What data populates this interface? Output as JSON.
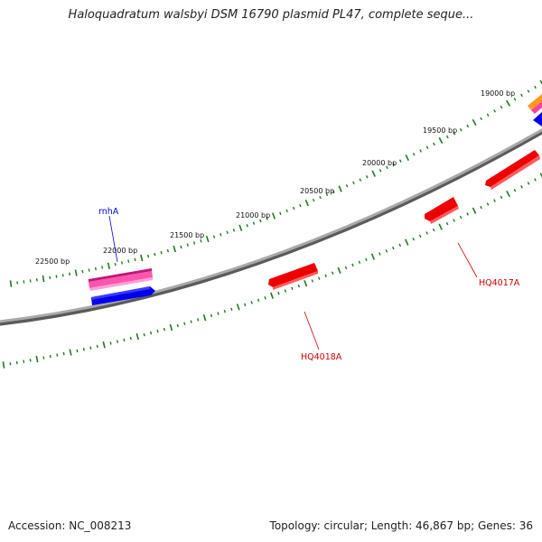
{
  "title": "Haloquadratum walsbyi DSM 16790 plasmid PL47, complete seque...",
  "footer": {
    "accession": "Accession: NC_008213",
    "summary": "Topology: circular; Length: 46,867 bp; Genes: 36"
  },
  "colors": {
    "backbone": "#808080",
    "tick": "#1e7a1e",
    "forward_cds": "#ee0000",
    "reverse_cds": "#0000ee",
    "rna": "#ff3fa0",
    "misc": "#ff8c00",
    "label_red": "#cc0000",
    "label_blue": "#0000cc"
  },
  "scale_labels": [
    {
      "bp": 19000,
      "text": "19000 bp"
    },
    {
      "bp": 19500,
      "text": "19500 bp"
    },
    {
      "bp": 20000,
      "text": "20000 bp"
    },
    {
      "bp": 20500,
      "text": "20500 bp"
    },
    {
      "bp": 21000,
      "text": "21000 bp"
    },
    {
      "bp": 21500,
      "text": "21500 bp"
    },
    {
      "bp": 22000,
      "text": "22000 bp"
    },
    {
      "bp": 22500,
      "text": "22500 bp"
    }
  ],
  "gene_labels": [
    {
      "text": "rnhA",
      "color": "label_blue"
    },
    {
      "text": "HQ4017A",
      "color": "label_red"
    },
    {
      "text": "HQ4018A",
      "color": "label_red"
    }
  ]
}
